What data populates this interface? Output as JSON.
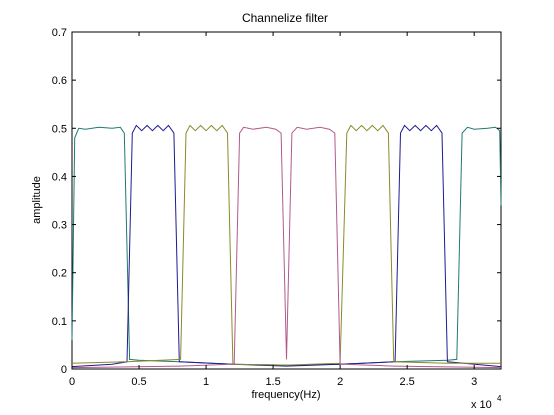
{
  "chart_data": {
    "type": "line",
    "title": "Channelize filter",
    "xlabel": "frequency(Hz)",
    "ylabel": "amplitude",
    "x_multiplier_label": "x 10",
    "x_multiplier_exponent": "4",
    "xlim": [
      0,
      3.2
    ],
    "ylim": [
      0,
      0.7
    ],
    "x_unit_scale": 10000,
    "x_ticks": [
      "0",
      "0.5",
      "1",
      "1.5",
      "2",
      "2.5",
      "3"
    ],
    "x_tick_values": [
      0,
      0.5,
      1,
      1.5,
      2,
      2.5,
      3
    ],
    "y_ticks": [
      "0",
      "0.1",
      "0.2",
      "0.3",
      "0.4",
      "0.5",
      "0.6",
      "0.7"
    ],
    "y_tick_values": [
      0,
      0.1,
      0.2,
      0.3,
      0.4,
      0.5,
      0.6,
      0.7
    ],
    "grid": false,
    "series": [
      {
        "color": "#1f7a6e",
        "points": [
          [
            0,
            0.06
          ],
          [
            0.02,
            0.48
          ],
          [
            0.05,
            0.5
          ],
          [
            0.1,
            0.498
          ],
          [
            0.2,
            0.502
          ],
          [
            0.3,
            0.5
          ],
          [
            0.36,
            0.502
          ],
          [
            0.39,
            0.49
          ],
          [
            0.43,
            0.02
          ],
          [
            0.5,
            0.018
          ],
          [
            0.8,
            0.015
          ],
          [
            1.2,
            0.01
          ],
          [
            1.6,
            0.008
          ],
          [
            2.0,
            0.01
          ],
          [
            2.4,
            0.015
          ],
          [
            2.8,
            0.018
          ],
          [
            2.87,
            0.02
          ],
          [
            2.91,
            0.49
          ],
          [
            2.95,
            0.502
          ],
          [
            3.0,
            0.498
          ],
          [
            3.1,
            0.5
          ],
          [
            3.16,
            0.502
          ],
          [
            3.19,
            0.495
          ],
          [
            3.2,
            0.34
          ]
        ]
      },
      {
        "color": "#1c1c8c",
        "points": [
          [
            0,
            0.005
          ],
          [
            0.3,
            0.01
          ],
          [
            0.41,
            0.015
          ],
          [
            0.45,
            0.49
          ],
          [
            0.48,
            0.506
          ],
          [
            0.52,
            0.495
          ],
          [
            0.56,
            0.506
          ],
          [
            0.6,
            0.495
          ],
          [
            0.64,
            0.506
          ],
          [
            0.68,
            0.495
          ],
          [
            0.72,
            0.506
          ],
          [
            0.76,
            0.49
          ],
          [
            0.8,
            0.015
          ],
          [
            1.2,
            0.01
          ],
          [
            1.6,
            0.006
          ],
          [
            2.0,
            0.01
          ],
          [
            2.41,
            0.015
          ],
          [
            2.45,
            0.49
          ],
          [
            2.48,
            0.506
          ],
          [
            2.52,
            0.495
          ],
          [
            2.56,
            0.506
          ],
          [
            2.6,
            0.495
          ],
          [
            2.64,
            0.506
          ],
          [
            2.68,
            0.495
          ],
          [
            2.72,
            0.506
          ],
          [
            2.76,
            0.49
          ],
          [
            2.8,
            0.015
          ],
          [
            3.2,
            0.005
          ]
        ]
      },
      {
        "color": "#8a8a2a",
        "points": [
          [
            0,
            0.012
          ],
          [
            0.4,
            0.015
          ],
          [
            0.81,
            0.02
          ],
          [
            0.85,
            0.49
          ],
          [
            0.88,
            0.506
          ],
          [
            0.92,
            0.495
          ],
          [
            0.96,
            0.506
          ],
          [
            1.0,
            0.495
          ],
          [
            1.04,
            0.506
          ],
          [
            1.08,
            0.495
          ],
          [
            1.12,
            0.506
          ],
          [
            1.16,
            0.49
          ],
          [
            1.2,
            0.01
          ],
          [
            1.6,
            0.008
          ],
          [
            2.0,
            0.012
          ],
          [
            2.05,
            0.49
          ],
          [
            2.08,
            0.506
          ],
          [
            2.12,
            0.495
          ],
          [
            2.16,
            0.506
          ],
          [
            2.2,
            0.495
          ],
          [
            2.24,
            0.506
          ],
          [
            2.28,
            0.495
          ],
          [
            2.32,
            0.506
          ],
          [
            2.36,
            0.49
          ],
          [
            2.4,
            0.015
          ],
          [
            2.8,
            0.012
          ],
          [
            3.2,
            0.012
          ]
        ]
      },
      {
        "color": "#b05a8a",
        "points": [
          [
            0,
            0.003
          ],
          [
            0.8,
            0.006
          ],
          [
            1.21,
            0.01
          ],
          [
            1.25,
            0.49
          ],
          [
            1.28,
            0.502
          ],
          [
            1.35,
            0.498
          ],
          [
            1.45,
            0.502
          ],
          [
            1.52,
            0.498
          ],
          [
            1.56,
            0.49
          ],
          [
            1.6,
            0.02
          ],
          [
            1.64,
            0.49
          ],
          [
            1.68,
            0.502
          ],
          [
            1.75,
            0.498
          ],
          [
            1.85,
            0.502
          ],
          [
            1.92,
            0.498
          ],
          [
            1.96,
            0.49
          ],
          [
            2.0,
            0.01
          ],
          [
            2.4,
            0.006
          ],
          [
            3.2,
            0.003
          ]
        ]
      }
    ]
  }
}
